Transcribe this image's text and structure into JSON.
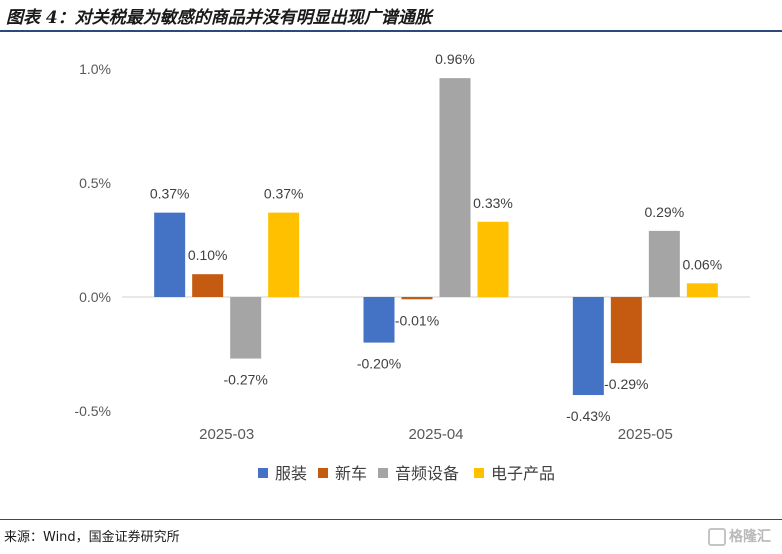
{
  "header": {
    "title": "图表 4：对关税最为敏感的商品并没有明显出现广谱通胀"
  },
  "footer": {
    "source": "来源：Wind，国金证券研究所",
    "watermark": "格隆汇"
  },
  "colors": {
    "服装": "#4472C4",
    "新车": "#C55A11",
    "音频设备": "#A5A5A5",
    "电子产品": "#FFC000",
    "axis": "#D9D9D9",
    "rule": "#2A4A7A"
  },
  "chart_data": {
    "type": "bar",
    "categories": [
      "2025-03",
      "2025-04",
      "2025-05"
    ],
    "series": [
      {
        "name": "服装",
        "values": [
          0.37,
          -0.2,
          -0.43
        ],
        "labels": [
          "0.37%",
          "-0.20%",
          "-0.43%"
        ]
      },
      {
        "name": "新车",
        "values": [
          0.1,
          -0.01,
          -0.29
        ],
        "labels": [
          "0.10%",
          "-0.01%",
          "-0.29%"
        ]
      },
      {
        "name": "音频设备",
        "values": [
          -0.27,
          0.96,
          0.29
        ],
        "labels": [
          "-0.27%",
          "0.96%",
          "0.29%"
        ]
      },
      {
        "name": "电子产品",
        "values": [
          0.37,
          0.33,
          0.06
        ],
        "labels": [
          "0.37%",
          "0.33%",
          "0.06%"
        ]
      }
    ],
    "yticks": [
      1.0,
      0.5,
      0.0,
      -0.5
    ],
    "ytick_labels": [
      "1.0%",
      "0.5%",
      "0.0%",
      "-0.5%"
    ],
    "ylim": [
      -0.5,
      1.0
    ],
    "legend_position": "bottom",
    "grid": false
  }
}
